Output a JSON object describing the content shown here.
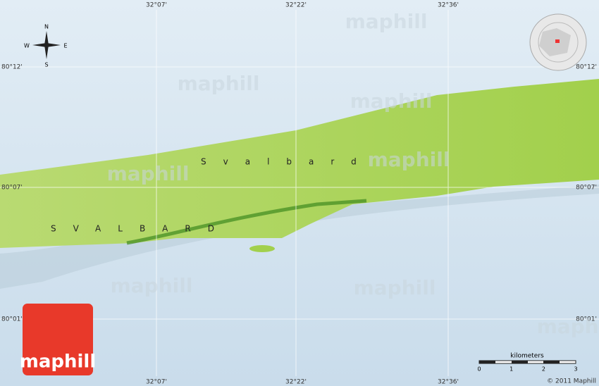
{
  "coordinates": {
    "top": [
      "32°07'",
      "32°22'",
      "32°36'"
    ],
    "bottom": [
      "32°07'",
      "32°22'",
      "32°36'"
    ],
    "left": [
      "80°12'",
      "80°07'",
      "80°01'"
    ],
    "right": [
      "80°12'",
      "80°07'",
      "80°01'"
    ]
  },
  "compass": {
    "north": "N",
    "south": "S",
    "east": "E",
    "west": "W"
  },
  "labels": [
    "Svalbard",
    "SVALBARD"
  ],
  "watermark": "maphill",
  "logo": "maphill",
  "scale": {
    "title": "kilometers",
    "ticks": [
      "0",
      "1",
      "2",
      "3"
    ]
  },
  "copyright": "© 2011 Maphill"
}
